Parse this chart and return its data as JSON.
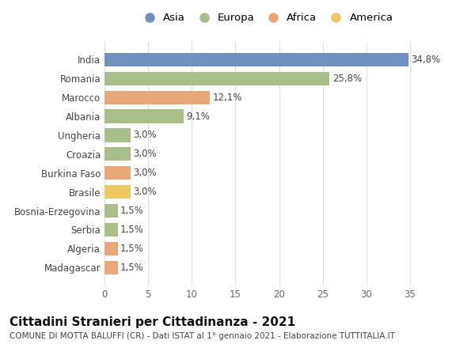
{
  "categories": [
    "India",
    "Romania",
    "Marocco",
    "Albania",
    "Ungheria",
    "Croazia",
    "Burkina Faso",
    "Brasile",
    "Bosnia-Erzegovina",
    "Serbia",
    "Algeria",
    "Madagascar"
  ],
  "values": [
    34.8,
    25.8,
    12.1,
    9.1,
    3.0,
    3.0,
    3.0,
    3.0,
    1.5,
    1.5,
    1.5,
    1.5
  ],
  "labels": [
    "34,8%",
    "25,8%",
    "12,1%",
    "9,1%",
    "3,0%",
    "3,0%",
    "3,0%",
    "3,0%",
    "1,5%",
    "1,5%",
    "1,5%",
    "1,5%"
  ],
  "continents": [
    "Asia",
    "Europa",
    "Africa",
    "Europa",
    "Europa",
    "Europa",
    "Africa",
    "America",
    "Europa",
    "Europa",
    "Africa",
    "Africa"
  ],
  "colors": {
    "Asia": "#7090c0",
    "Europa": "#a8c088",
    "Africa": "#e8a878",
    "America": "#f0c860"
  },
  "legend_order": [
    "Asia",
    "Europa",
    "Africa",
    "America"
  ],
  "title": "Cittadini Stranieri per Cittadinanza - 2021",
  "subtitle": "COMUNE DI MOTTA BALUFFI (CR) - Dati ISTAT al 1° gennaio 2021 - Elaborazione TUTTITALIA.IT",
  "xlim": [
    0,
    37
  ],
  "xticks": [
    0,
    5,
    10,
    15,
    20,
    25,
    30,
    35
  ],
  "bg_color": "#ffffff",
  "grid_color": "#e0e0e0",
  "bar_height": 0.72,
  "title_fontsize": 11,
  "subtitle_fontsize": 7.5,
  "label_fontsize": 8.5,
  "tick_fontsize": 8.5,
  "legend_fontsize": 9.5
}
